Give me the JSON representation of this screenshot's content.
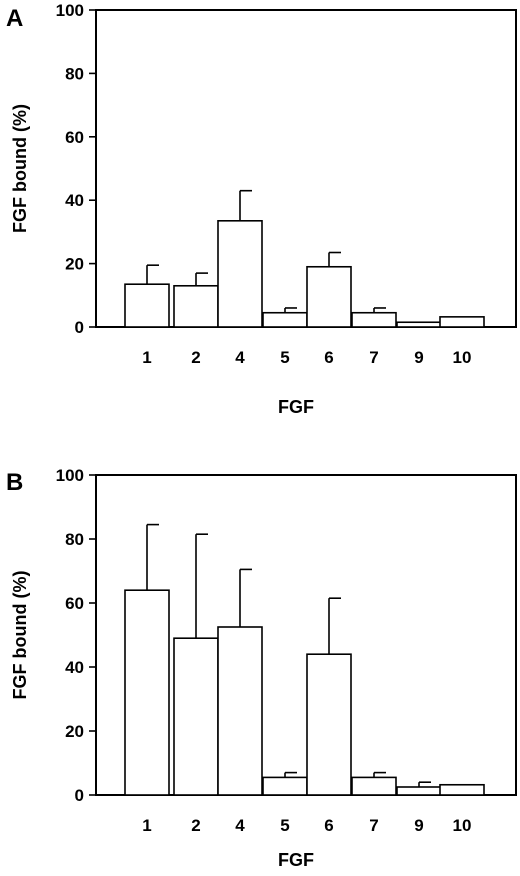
{
  "chart_data": [
    {
      "panel": "A",
      "type": "bar",
      "categories": [
        "1",
        "2",
        "4",
        "5",
        "6",
        "7",
        "9",
        "10"
      ],
      "values": [
        13.5,
        13,
        33.5,
        4.5,
        19,
        4.5,
        1.5,
        3.2
      ],
      "errors": [
        6,
        4,
        9.5,
        1.5,
        4.5,
        1.5,
        0,
        0
      ],
      "xlabel": "FGF",
      "ylabel": "FGF bound (%)",
      "ylim": [
        0,
        100
      ],
      "yticks": [
        0,
        20,
        40,
        60,
        80,
        100
      ],
      "grid": false
    },
    {
      "panel": "B",
      "type": "bar",
      "categories": [
        "1",
        "2",
        "4",
        "5",
        "6",
        "7",
        "9",
        "10"
      ],
      "values": [
        64,
        49,
        52.5,
        5.5,
        44,
        5.5,
        2.5,
        3.2
      ],
      "errors": [
        20.5,
        32.5,
        18,
        1.5,
        17.5,
        1.5,
        1.5,
        0
      ],
      "xlabel": "FGF",
      "ylabel": "FGF bound (%)",
      "ylim": [
        0,
        100
      ],
      "yticks": [
        0,
        20,
        40,
        60,
        80,
        100
      ],
      "grid": false
    }
  ]
}
